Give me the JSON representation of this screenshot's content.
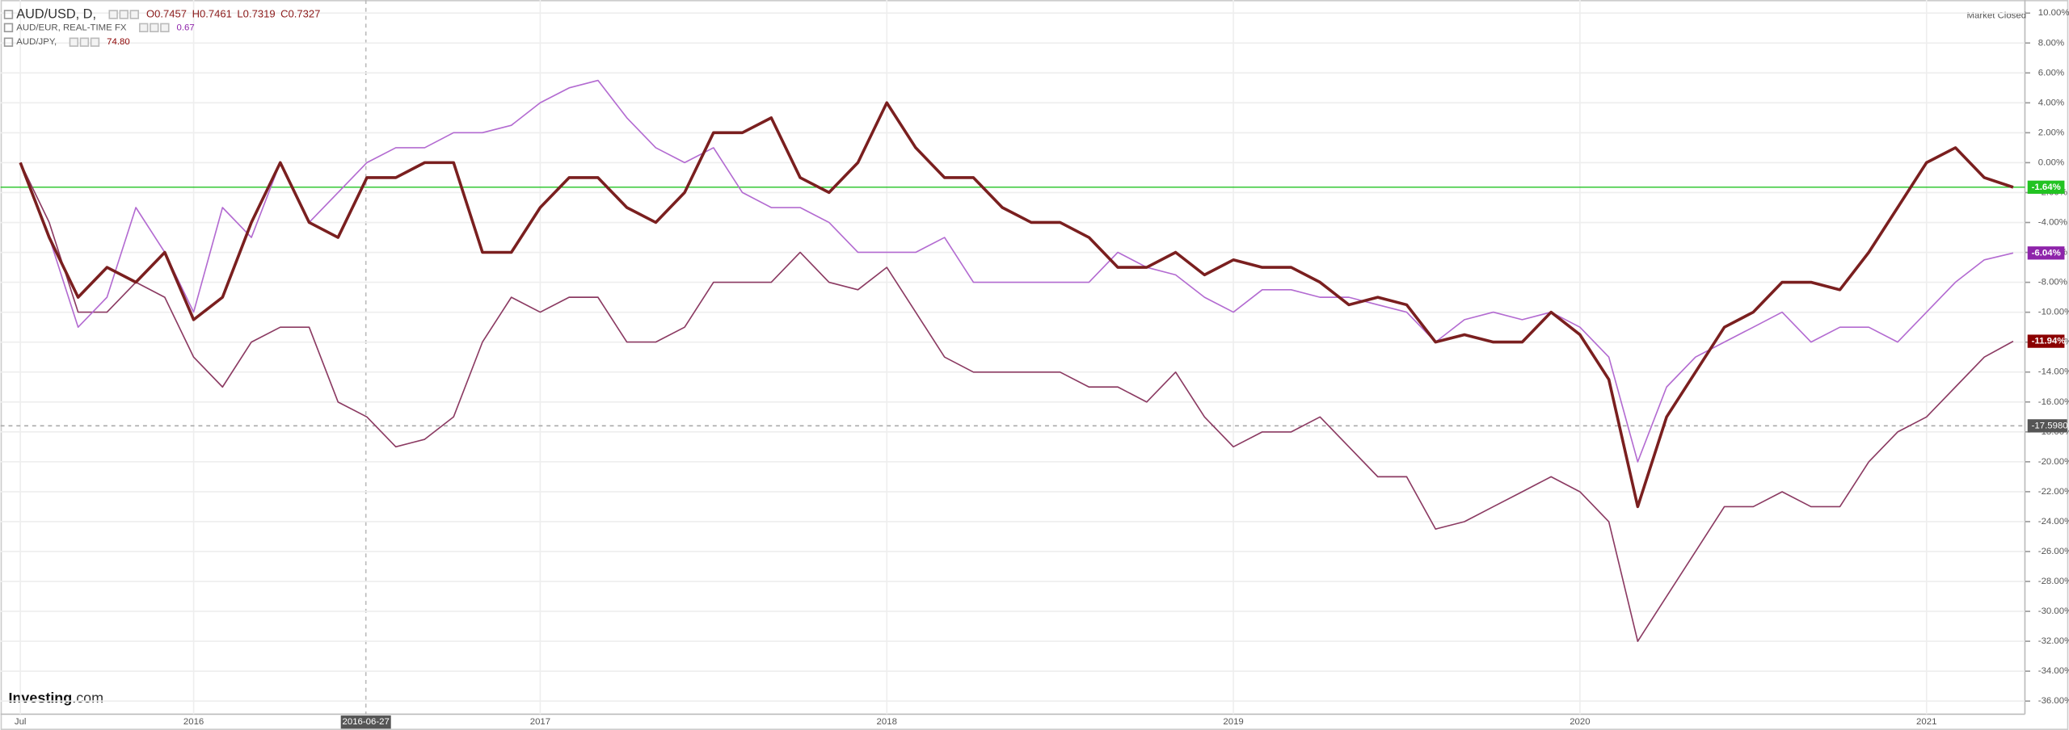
{
  "chart_data": {
    "type": "line",
    "header": {
      "ohlc": [
        "O0.7457",
        "H0.7461",
        "L0.7319",
        "C0.7327"
      ],
      "status": "Market Closed",
      "logo": "Investing",
      "logo_suffix": ".com"
    },
    "crosshair": {
      "x_label": "2016-06-27",
      "y": {
        "value": -17.598,
        "label": "-17.5980"
      }
    },
    "categories": [
      "Jul",
      null,
      null,
      null,
      null,
      null,
      "2016",
      null,
      null,
      null,
      null,
      null,
      null,
      null,
      null,
      null,
      null,
      null,
      "2017",
      null,
      null,
      null,
      null,
      null,
      null,
      null,
      null,
      null,
      null,
      null,
      "2018",
      null,
      null,
      null,
      null,
      null,
      null,
      null,
      null,
      null,
      null,
      null,
      "2019",
      null,
      null,
      null,
      null,
      null,
      null,
      null,
      null,
      null,
      null,
      null,
      "2020",
      null,
      null,
      null,
      null,
      null,
      null,
      null,
      null,
      null,
      null,
      null,
      "2021",
      null,
      null,
      null
    ],
    "ylim": [
      -36.7,
      10.7
    ],
    "yticks": [
      {
        "value": 10,
        "label": "10.00%"
      },
      {
        "value": 8,
        "label": "8.00%"
      },
      {
        "value": 6,
        "label": "6.00%"
      },
      {
        "value": 4,
        "label": "4.00%"
      },
      {
        "value": 2,
        "label": "2.00%"
      },
      {
        "value": 0,
        "label": "0.00%"
      },
      {
        "value": -2,
        "label": "-2.00%"
      },
      {
        "value": -4,
        "label": "-4.00%"
      },
      {
        "value": -6,
        "label": "-6.00%"
      },
      {
        "value": -8,
        "label": "-8.00%"
      },
      {
        "value": -10,
        "label": "-10.00%"
      },
      {
        "value": -12,
        "label": "-12.00%"
      },
      {
        "value": -14,
        "label": "-14.00%"
      },
      {
        "value": -16,
        "label": "-16.00%"
      },
      {
        "value": -18,
        "label": "-18.00%"
      },
      {
        "value": -20,
        "label": "-20.00%"
      },
      {
        "value": -22,
        "label": "-22.00%"
      },
      {
        "value": -24,
        "label": "-24.00%"
      },
      {
        "value": -26,
        "label": "-26.00%"
      },
      {
        "value": -28,
        "label": "-28.00%"
      },
      {
        "value": -30,
        "label": "-30.00%"
      },
      {
        "value": -32,
        "label": "-32.00%"
      },
      {
        "value": -34,
        "label": "-34.00%"
      },
      {
        "value": -36,
        "label": "-36.00%"
      }
    ],
    "grid": true,
    "series": [
      {
        "name": "AUD/USD, D,",
        "color": "#7a1f1f",
        "label_color": "#22c322",
        "end_label": "-1.64%",
        "values": [
          0,
          -5,
          -9,
          -7,
          -8,
          -6,
          -10.5,
          -9,
          -4,
          0,
          -4,
          -5,
          -1,
          -1,
          0,
          0,
          -6,
          -6,
          -3,
          -1,
          -1,
          -3,
          -4,
          -2,
          2,
          2,
          3,
          -1,
          -2,
          0,
          4,
          1,
          -1,
          -1,
          -3,
          -4,
          -4,
          -5,
          -7,
          -7,
          -6,
          -7.5,
          -6.5,
          -7,
          -7,
          -8,
          -9.5,
          -9,
          -9.5,
          -12,
          -11.5,
          -12,
          -12,
          -10,
          -11.5,
          -14.5,
          -23,
          -17,
          -14,
          -11,
          -10,
          -8,
          -8,
          -8.5,
          -6,
          -3,
          0,
          1,
          -1,
          -1.64
        ]
      },
      {
        "name": "AUD/EUR, REAL-TIME FX",
        "quote": "0.67",
        "color": "#b36bd1",
        "label_color": "#8e24aa",
        "end_label": "-6.04%",
        "values": [
          0,
          -5,
          -11,
          -9,
          -3,
          -6,
          -10,
          -3,
          -5,
          0,
          -4,
          -2,
          0,
          1,
          1,
          2,
          2,
          2.5,
          4,
          5,
          5.5,
          3,
          1,
          0,
          1,
          -2,
          -3,
          -3,
          -4,
          -6,
          -6,
          -6,
          -5,
          -8,
          -8,
          -8,
          -8,
          -8,
          -6,
          -7,
          -7.5,
          -9,
          -10,
          -8.5,
          -8.5,
          -9,
          -9,
          -9.5,
          -10,
          -12,
          -10.5,
          -10,
          -10.5,
          -10,
          -11,
          -13,
          -20,
          -15,
          -13,
          -12,
          -11,
          -10,
          -12,
          -11,
          -11,
          -12,
          -10,
          -8,
          -6.5,
          -6.04
        ]
      },
      {
        "name": "AUD/JPY,",
        "quote": "74.80",
        "color": "#8b3a62",
        "label_color": "#8b0000",
        "end_label": "-11.94%",
        "values": [
          0,
          -4,
          -10,
          -10,
          -8,
          -9,
          -13,
          -15,
          -12,
          -11,
          -11,
          -16,
          -17,
          -19,
          -18.5,
          -17,
          -12,
          -9,
          -10,
          -9,
          -9,
          -12,
          -12,
          -11,
          -8,
          -8,
          -8,
          -6,
          -8,
          -8.5,
          -7,
          -10,
          -13,
          -14,
          -14,
          -14,
          -14,
          -15,
          -15,
          -16,
          -14,
          -17,
          -19,
          -18,
          -18,
          -17,
          -19,
          -21,
          -21,
          -24.5,
          -24,
          -23,
          -22,
          -21,
          -22,
          -24,
          -32,
          -29,
          -26,
          -23,
          -23,
          -22,
          -23,
          -23,
          -20,
          -18,
          -17,
          -15,
          -13,
          -11.94
        ]
      }
    ]
  }
}
